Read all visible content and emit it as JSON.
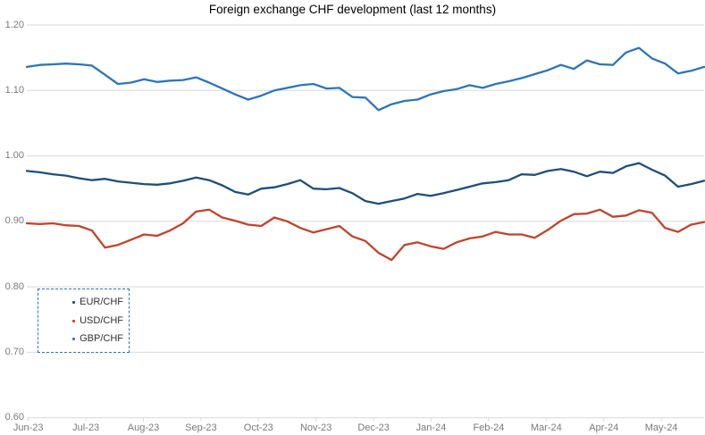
{
  "chart_data": {
    "type": "line",
    "title": "Foreign exchange CHF development (last 12 months)",
    "x_categories": [
      "Jun-23",
      "Jul-23",
      "Aug-23",
      "Sep-23",
      "Oct-23",
      "Nov-23",
      "Dec-23",
      "Jan-24",
      "Feb-24",
      "Mar-24",
      "Apr-24",
      "May-24"
    ],
    "ylim": [
      0.6,
      1.2
    ],
    "ytick_step": 0.1,
    "ytick_labels": [
      "0.60",
      "0.70",
      "0.80",
      "0.90",
      "1.00",
      "1.10",
      "1.20"
    ],
    "grid": "horizontal",
    "gridline_color": "#d9d9d9",
    "axis_label_color": "#7a7a7a",
    "legend_position": "bottom-left",
    "legend_border_color": "#2e75b6",
    "series": [
      {
        "name": "EUR/CHF",
        "color": "#1f4e79",
        "values": [
          0.977,
          0.975,
          0.972,
          0.97,
          0.966,
          0.963,
          0.965,
          0.961,
          0.959,
          0.957,
          0.956,
          0.958,
          0.962,
          0.967,
          0.963,
          0.955,
          0.945,
          0.941,
          0.95,
          0.952,
          0.957,
          0.963,
          0.95,
          0.949,
          0.951,
          0.943,
          0.931,
          0.927,
          0.931,
          0.935,
          0.942,
          0.939,
          0.943,
          0.948,
          0.953,
          0.958,
          0.96,
          0.963,
          0.972,
          0.971,
          0.977,
          0.98,
          0.976,
          0.969,
          0.976,
          0.974,
          0.984,
          0.989,
          0.979,
          0.97,
          0.953,
          0.957,
          0.962
        ]
      },
      {
        "name": "USD/CHF",
        "color": "#c0442c",
        "values": [
          0.897,
          0.896,
          0.897,
          0.894,
          0.893,
          0.886,
          0.86,
          0.864,
          0.872,
          0.88,
          0.878,
          0.886,
          0.897,
          0.915,
          0.918,
          0.906,
          0.901,
          0.895,
          0.893,
          0.906,
          0.9,
          0.89,
          0.883,
          0.888,
          0.893,
          0.877,
          0.87,
          0.852,
          0.841,
          0.864,
          0.868,
          0.862,
          0.858,
          0.868,
          0.874,
          0.877,
          0.884,
          0.88,
          0.88,
          0.875,
          0.887,
          0.901,
          0.911,
          0.912,
          0.918,
          0.907,
          0.909,
          0.917,
          0.913,
          0.89,
          0.884,
          0.895,
          0.899
        ]
      },
      {
        "name": "GBP/CHF",
        "color": "#2e75b6",
        "values": [
          1.136,
          1.139,
          1.14,
          1.141,
          1.14,
          1.138,
          1.124,
          1.11,
          1.112,
          1.117,
          1.113,
          1.115,
          1.116,
          1.12,
          1.112,
          1.103,
          1.094,
          1.086,
          1.092,
          1.1,
          1.104,
          1.108,
          1.11,
          1.103,
          1.104,
          1.09,
          1.089,
          1.07,
          1.079,
          1.084,
          1.086,
          1.094,
          1.099,
          1.102,
          1.108,
          1.104,
          1.11,
          1.114,
          1.119,
          1.125,
          1.131,
          1.139,
          1.133,
          1.146,
          1.14,
          1.139,
          1.158,
          1.165,
          1.149,
          1.141,
          1.126,
          1.13,
          1.136
        ]
      }
    ]
  }
}
